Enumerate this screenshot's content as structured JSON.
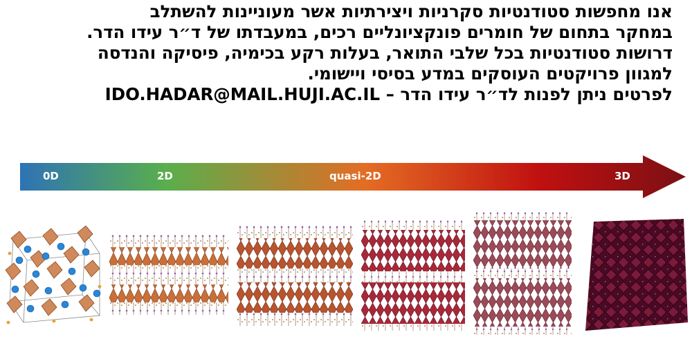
{
  "paragraph": {
    "lines": [
      "אנו מחפשות סטודנטיות סקרניות ויצירתיות אשר מעוניינות להשתלב",
      "במחקר בתחום של חומרים פונקציונליים רכים, במעבדתו של ד״ר עידו הדר.",
      "דרושות סטודנטיות בכל שלבי התואר, בעלות רקע בכימיה, פיסיקה והנדסה",
      "למגוון פרויקטים העוסקים במדע בסיסי ויישומי."
    ],
    "contact_text": "לפרטים ניתן לפנות לד״ר עידו הדר – ",
    "email": "IDO.HADAR@MAIL.HUJI.AC.IL"
  },
  "arrow": {
    "labels": [
      "0D",
      "2D",
      "quasi-2D",
      "3D"
    ],
    "gradient_colors": [
      "#2e73b5",
      "#5aae4c",
      "#e46c24",
      "#c01010",
      "#7b1014"
    ]
  },
  "structure_images": [
    "0D-perovskite-structure",
    "2D-layered-structure",
    "quasi-2D-layered-structure-1",
    "quasi-2D-layered-structure-2",
    "quasi-2D-layered-structure-3",
    "3D-perovskite-structure"
  ]
}
